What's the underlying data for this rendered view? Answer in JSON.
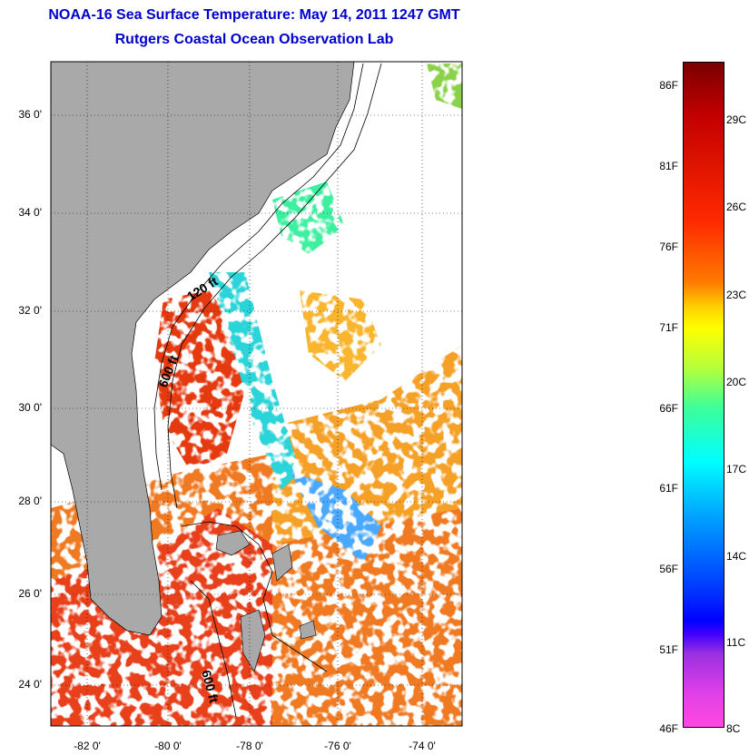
{
  "title": "NOAA-16 Sea Surface Temperature:  May 14, 2011 1247 GMT",
  "subtitle": "Rutgers Coastal Ocean Observation Lab",
  "map": {
    "lat_labels": [
      "36 0'",
      "34 0'",
      "32 0'",
      "30 0'",
      "28 0'",
      "26 0'",
      "24 0'"
    ],
    "lon_labels": [
      "-82 0'",
      "-80 0'",
      "-78 0'",
      "-76 0'",
      "-74 0'"
    ],
    "contour_labels": [
      "120 ft",
      "600 ft",
      "600 ft"
    ],
    "colors": {
      "land": "#a9a9a9",
      "cloud": "#ffffff",
      "warm_water": "#f05a1e",
      "gulf_stream": "#e53a10"
    }
  },
  "colorbar": {
    "fahrenheit_labels": [
      "86F",
      "81F",
      "76F",
      "71F",
      "66F",
      "61F",
      "56F",
      "51F",
      "46F"
    ],
    "celsius_labels": [
      "29C",
      "26C",
      "23C",
      "20C",
      "17C",
      "14C",
      "11C",
      "8C"
    ]
  }
}
